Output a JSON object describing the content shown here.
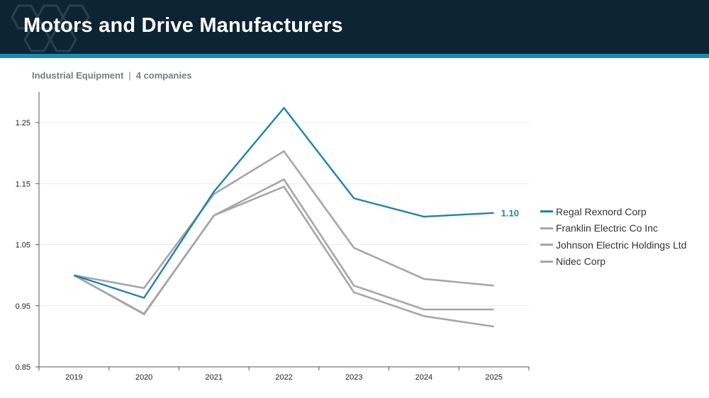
{
  "header": {
    "title": "Motors and Drive Manufacturers",
    "background": "#0d2433",
    "stripe_color": "#1a8bb8"
  },
  "subheader": {
    "sector": "Industrial Equipment",
    "separator": "|",
    "count": "4 companies"
  },
  "chart_data": {
    "type": "line",
    "title": "",
    "xlabel": "",
    "ylabel": "",
    "x": [
      "2019",
      "2020",
      "2021",
      "2022",
      "2023",
      "2024",
      "2025"
    ],
    "ylim": [
      0.85,
      1.3
    ],
    "yticks": [
      0.85,
      0.95,
      1.05,
      1.15,
      1.25
    ],
    "ytick_labels": [
      "0.85",
      "0.95",
      "1.05",
      "1.15",
      "1.25"
    ],
    "grid": "horizontal",
    "legend_position": "right",
    "series": [
      {
        "name": "Regal Rexnord Corp",
        "color": "#1a84b0",
        "highlight": true,
        "end_label": "1.10",
        "values": [
          1.0,
          0.963,
          1.137,
          1.274,
          1.126,
          1.096,
          1.102
        ]
      },
      {
        "name": "Franklin Electric Co Inc",
        "color": "#a6a6a6",
        "highlight": false,
        "values": [
          1.0,
          0.979,
          1.133,
          1.203,
          1.045,
          0.994,
          0.983
        ]
      },
      {
        "name": "Johnson Electric Holdings Ltd",
        "color": "#a6a6a6",
        "highlight": false,
        "values": [
          1.0,
          0.936,
          1.098,
          1.157,
          0.983,
          0.944,
          0.944
        ]
      },
      {
        "name": "Nidec Corp",
        "color": "#a6a6a6",
        "highlight": false,
        "values": [
          1.0,
          0.937,
          1.098,
          1.145,
          0.972,
          0.933,
          0.916
        ]
      }
    ]
  }
}
